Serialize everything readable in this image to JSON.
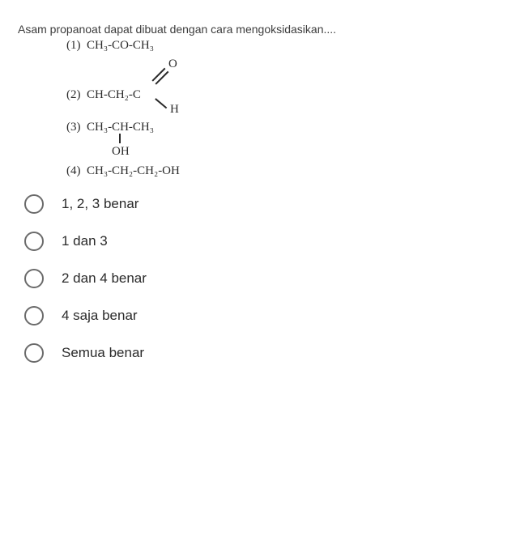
{
  "question": "Asam propanoat dapat dibuat dengan cara mengoksidasikan....",
  "formulas": {
    "f1_num": "(1)",
    "f1": "CH₃-CO-CH₃",
    "f2_num": "(2)",
    "f2_base": "CH-CH₂-C",
    "f2_o": "O",
    "f2_h": "H",
    "f3_num": "(3)",
    "f3_top": "CH₃-CH-CH₃",
    "f3_oh": "OH",
    "f4_num": "(4)",
    "f4": "CH₃-CH₂-CH₂-OH"
  },
  "options": [
    {
      "label": "1, 2, 3 benar"
    },
    {
      "label": "1 dan 3"
    },
    {
      "label": "2 dan 4 benar"
    },
    {
      "label": "4 saja benar"
    },
    {
      "label": "Semua benar"
    }
  ]
}
